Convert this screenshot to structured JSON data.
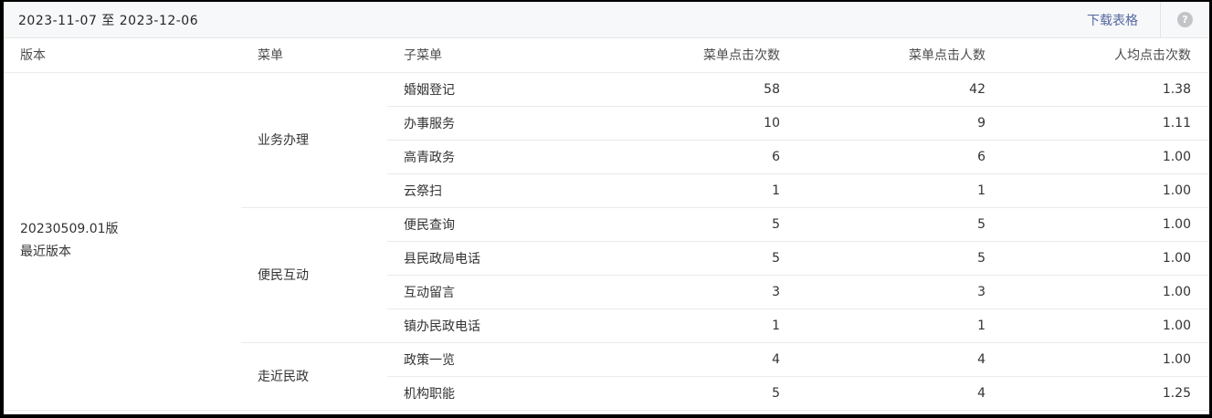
{
  "toolbar": {
    "date_range": "2023-11-07 至 2023-12-06",
    "download_label": "下载表格",
    "help_glyph": "?",
    "link_color": "#54679e"
  },
  "table": {
    "columns": {
      "version": "版本",
      "menu": "菜单",
      "submenu": "子菜单",
      "clicks": "菜单点击次数",
      "users": "菜单点击人数",
      "avg": "人均点击次数"
    },
    "version": {
      "name": "20230509.01版",
      "tag": "最近版本"
    },
    "groups": [
      {
        "menu": "业务办理",
        "rows": [
          {
            "submenu": "婚姻登记",
            "clicks": "58",
            "users": "42",
            "avg": "1.38"
          },
          {
            "submenu": "办事服务",
            "clicks": "10",
            "users": "9",
            "avg": "1.11"
          },
          {
            "submenu": "高青政务",
            "clicks": "6",
            "users": "6",
            "avg": "1.00"
          },
          {
            "submenu": "云祭扫",
            "clicks": "1",
            "users": "1",
            "avg": "1.00"
          }
        ]
      },
      {
        "menu": "便民互动",
        "rows": [
          {
            "submenu": "便民查询",
            "clicks": "5",
            "users": "5",
            "avg": "1.00"
          },
          {
            "submenu": "县民政局电话",
            "clicks": "5",
            "users": "5",
            "avg": "1.00"
          },
          {
            "submenu": "互动留言",
            "clicks": "3",
            "users": "3",
            "avg": "1.00"
          },
          {
            "submenu": "镇办民政电话",
            "clicks": "1",
            "users": "1",
            "avg": "1.00"
          }
        ]
      },
      {
        "menu": "走近民政",
        "rows": [
          {
            "submenu": "政策一览",
            "clicks": "4",
            "users": "4",
            "avg": "1.00"
          },
          {
            "submenu": "机构职能",
            "clicks": "5",
            "users": "4",
            "avg": "1.25"
          }
        ]
      }
    ]
  }
}
